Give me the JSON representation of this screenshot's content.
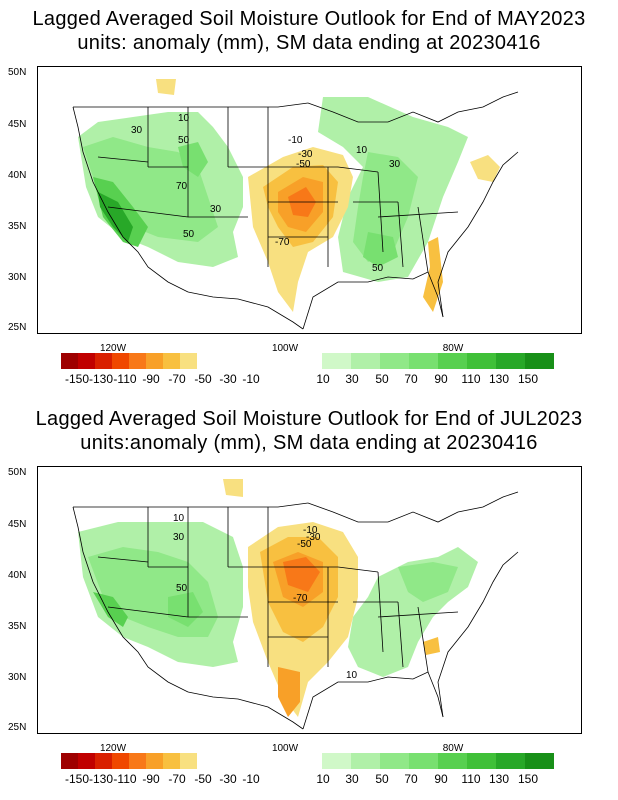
{
  "panels": [
    {
      "title_line1": "Lagged Averaged Soil Moisture Outlook for End of MAY2023",
      "title_line2": "units: anomaly (mm), SM data ending at 20230416",
      "contour_labels": [
        "10",
        "50",
        "30",
        "70",
        "30",
        "50",
        "-10",
        "-30",
        "-50",
        "-70",
        "10",
        "30",
        "50"
      ]
    },
    {
      "title_line1": "Lagged Averaged Soil Moisture Outlook for End of JUL2023",
      "title_line2": "units:anomaly (mm), SM data ending at 20230416",
      "contour_labels": [
        "10",
        "30",
        "50",
        "-10",
        "-30",
        "-50",
        "-70",
        "10"
      ]
    }
  ],
  "lat_labels": [
    "50N",
    "45N",
    "40N",
    "35N",
    "30N",
    "25N"
  ],
  "lon_labels": [
    "120W",
    "100W",
    "80W"
  ],
  "colorbar_ticks": [
    "-150",
    "-130",
    "-110",
    "-90",
    "-70",
    "-50",
    "-30",
    "-10",
    "10",
    "30",
    "50",
    "70",
    "90",
    "110",
    "130",
    "150"
  ],
  "colors": {
    "dry": [
      "#9e0000",
      "#c00000",
      "#d92000",
      "#f04800",
      "#f87818",
      "#f8a028",
      "#f8c040",
      "#f8e080"
    ],
    "wet": [
      "#d0f8c8",
      "#b0f0a8",
      "#90e888",
      "#78e070",
      "#58d050",
      "#40c038",
      "#28a828",
      "#189018"
    ]
  }
}
